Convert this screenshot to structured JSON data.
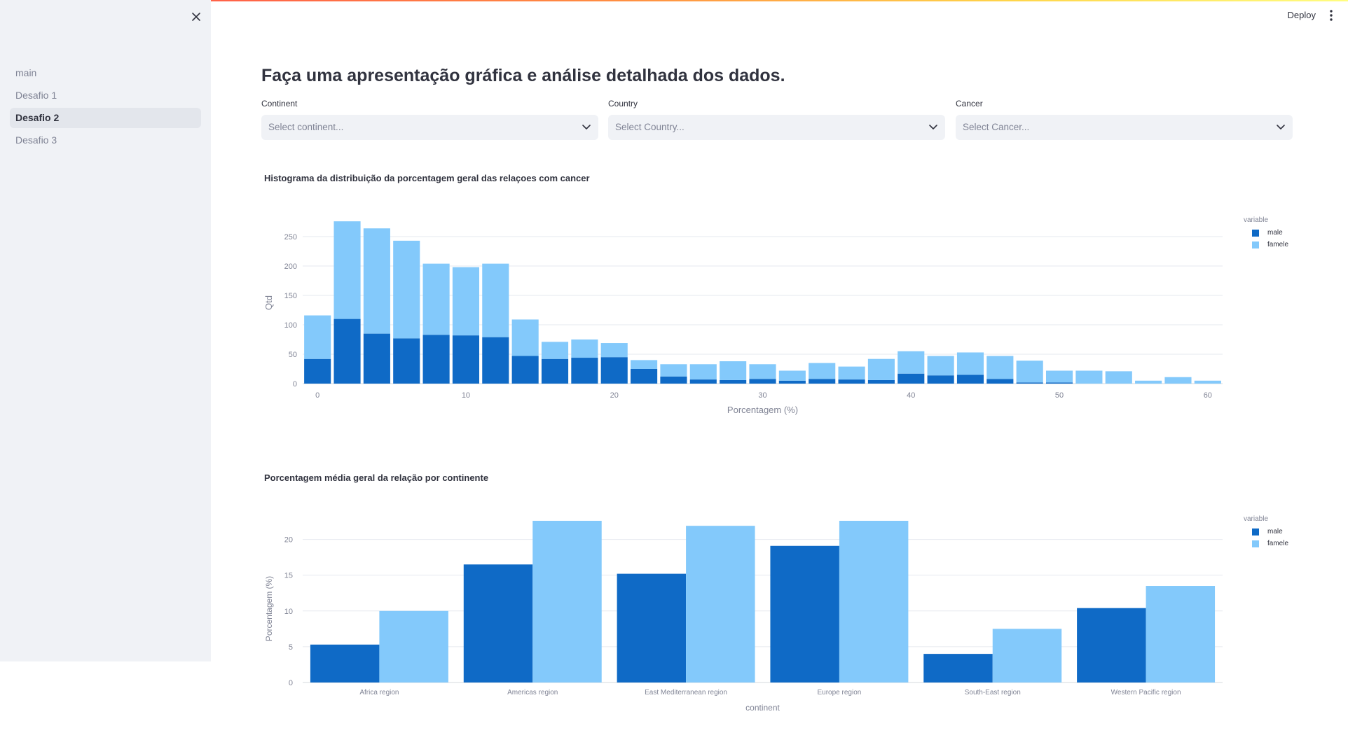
{
  "header": {
    "deploy_label": "Deploy",
    "menu_icon": "kebab-menu-icon"
  },
  "sidebar": {
    "close_icon": "close-icon",
    "items": [
      {
        "label": "main",
        "active": false
      },
      {
        "label": "Desafio 1",
        "active": false
      },
      {
        "label": "Desafio 2",
        "active": true
      },
      {
        "label": "Desafio 3",
        "active": false
      }
    ]
  },
  "main": {
    "title": "Faça uma apresentação gráfica e análise detalhada dos dados.",
    "filters": [
      {
        "label": "Continent",
        "placeholder": "Select continent..."
      },
      {
        "label": "Country",
        "placeholder": "Select Country..."
      },
      {
        "label": "Cancer",
        "placeholder": "Select Cancer..."
      }
    ]
  },
  "colors": {
    "male": "#0f6ac6",
    "famele": "#83c9fb",
    "grid": "#e6e9ef",
    "axis_text": "#808495",
    "title_text": "#31333f"
  },
  "chart_data": [
    {
      "type": "bar",
      "stacked": true,
      "title": "Histograma da distribuição da porcentagem geral das relaçoes com cancer",
      "xlabel": "Porcentagem (%)",
      "ylabel": "Qtd",
      "xlim": [
        -1.0,
        61.0
      ],
      "ylim": [
        0,
        275
      ],
      "xticks": [
        0,
        10,
        20,
        30,
        40,
        50,
        60
      ],
      "yticks": [
        0,
        50,
        100,
        150,
        200,
        250
      ],
      "bin_width": 2,
      "x": [
        0,
        2,
        4,
        6,
        8,
        10,
        12,
        14,
        16,
        18,
        20,
        22,
        24,
        26,
        28,
        30,
        32,
        34,
        36,
        38,
        40,
        42,
        44,
        46,
        48,
        50,
        52,
        54,
        56,
        58,
        60
      ],
      "legend": {
        "title": "variable",
        "position": "top-right"
      },
      "grid": true,
      "series": [
        {
          "name": "male",
          "values": [
            42,
            110,
            85,
            77,
            83,
            82,
            79,
            47,
            42,
            44,
            45,
            25,
            12,
            7,
            6,
            8,
            5,
            8,
            7,
            6,
            17,
            14,
            15,
            8,
            2,
            2,
            0,
            0,
            0,
            0,
            0
          ]
        },
        {
          "name": "famele",
          "values": [
            74,
            166,
            179,
            166,
            121,
            116,
            125,
            62,
            29,
            31,
            24,
            15,
            21,
            26,
            32,
            25,
            17,
            27,
            22,
            36,
            38,
            33,
            38,
            39,
            37,
            20,
            22,
            21,
            5,
            11,
            5
          ]
        }
      ]
    },
    {
      "type": "bar",
      "grouped": true,
      "title": "Porcentagem média geral da relação por continente",
      "xlabel": "continent",
      "ylabel": "Porcentagem (%)",
      "ylim": [
        0,
        22.6
      ],
      "yticks": [
        0,
        5,
        10,
        15,
        20
      ],
      "categories": [
        "Africa region",
        "Americas region",
        "East Mediterranean region",
        "Europe region",
        "South-East region",
        "Western Pacific region"
      ],
      "legend": {
        "title": "variable",
        "position": "top-right"
      },
      "grid": true,
      "series": [
        {
          "name": "male",
          "values": [
            5.3,
            16.5,
            15.2,
            19.1,
            4.0,
            10.4
          ]
        },
        {
          "name": "famele",
          "values": [
            10.0,
            22.6,
            21.9,
            22.6,
            7.5,
            13.5
          ]
        }
      ]
    }
  ]
}
